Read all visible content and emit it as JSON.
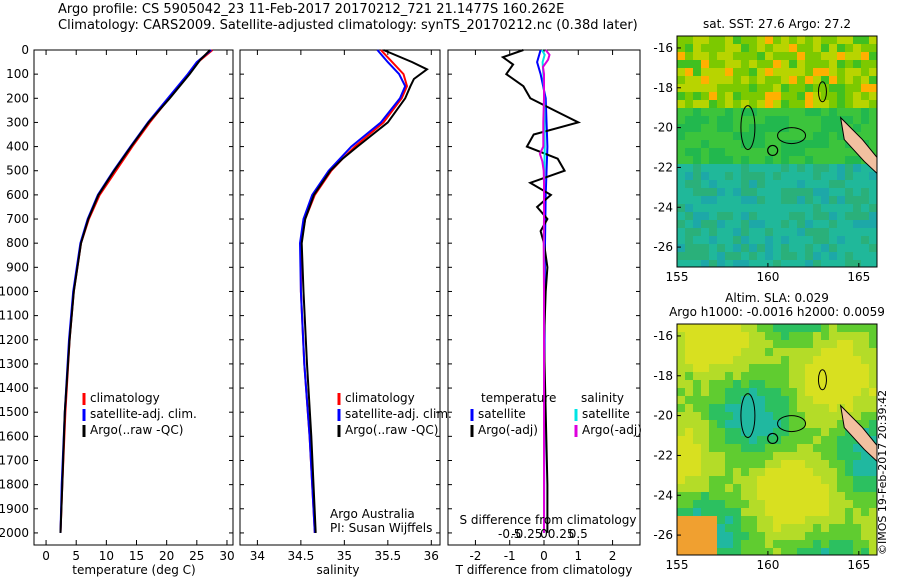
{
  "header": {
    "line1": "Argo profile: CS 5905042_23 11-Feb-2017 20170212_721 21.1477S 160.262E",
    "line2": "Climatology: CARS2009. Satellite-adjusted climatology: synTS_20170212.nc (0.38d later)"
  },
  "side_stamp": "©IMOS 19-Feb-2017 20:39:42",
  "colors": {
    "clim": "#ff0000",
    "sat": "#0000ff",
    "argo": "#000000",
    "sal_sat": "#00e5e5",
    "sal_argo": "#dd00dd"
  },
  "chart_data": [
    {
      "type": "line",
      "name": "temperature-profile",
      "xlabel": "temperature (deg C)",
      "ylabel": "",
      "xlim": [
        -2,
        31
      ],
      "ylim": [
        2050,
        0
      ],
      "xticks": [
        0,
        5,
        10,
        15,
        20,
        25,
        30
      ],
      "yticks": [
        0,
        100,
        200,
        300,
        400,
        500,
        600,
        700,
        800,
        900,
        1000,
        1100,
        1200,
        1300,
        1400,
        1500,
        1600,
        1700,
        1800,
        1900,
        2000
      ],
      "legend": [
        "climatology",
        "satellite-adj. clim.",
        "Argo(..raw -QC)"
      ],
      "series": [
        {
          "name": "climatology",
          "color": "#ff0000",
          "depth": [
            0,
            50,
            100,
            200,
            300,
            400,
            500,
            600,
            700,
            800,
            1000,
            1200,
            1500,
            1800,
            2000
          ],
          "values": [
            27.6,
            25.2,
            23.6,
            20.4,
            17.2,
            14.3,
            11.6,
            8.9,
            7.1,
            5.8,
            4.6,
            3.9,
            3.2,
            2.7,
            2.4
          ]
        },
        {
          "name": "satellite-adj. clim.",
          "color": "#0000ff",
          "depth": [
            0,
            50,
            100,
            200,
            300,
            400,
            500,
            600,
            700,
            800,
            1000,
            1200,
            1500,
            1800,
            2000
          ],
          "values": [
            27.4,
            25.0,
            23.5,
            20.2,
            16.9,
            14.0,
            11.2,
            8.6,
            6.9,
            5.7,
            4.5,
            3.8,
            3.1,
            2.6,
            2.4
          ]
        },
        {
          "name": "Argo(..raw -QC)",
          "color": "#000000",
          "depth": [
            0,
            40,
            100,
            200,
            300,
            400,
            500,
            600,
            700,
            800,
            1000,
            1200,
            1500,
            1800,
            2000
          ],
          "values": [
            27.2,
            25.6,
            23.8,
            20.5,
            17.0,
            14.1,
            11.3,
            8.7,
            7.0,
            5.8,
            4.6,
            3.9,
            3.1,
            2.7,
            2.4
          ]
        }
      ]
    },
    {
      "type": "line",
      "name": "salinity-profile",
      "xlabel": "salinity",
      "ylabel": "",
      "xlim": [
        33.8,
        36.1
      ],
      "ylim": [
        2050,
        0
      ],
      "xticks": [
        34,
        34.5,
        35,
        35.5,
        36
      ],
      "legend": [
        "climatology",
        "satellite-adj. clim.",
        "Argo(..raw -QC)"
      ],
      "annotation": [
        "Argo Australia",
        "PI: Susan Wijffels"
      ],
      "series": [
        {
          "name": "climatology",
          "color": "#ff0000",
          "depth": [
            0,
            50,
            100,
            150,
            200,
            300,
            400,
            450,
            500,
            600,
            700,
            800,
            1000,
            1300,
            1600,
            2000
          ],
          "values": [
            35.42,
            35.55,
            35.68,
            35.72,
            35.66,
            35.45,
            35.12,
            34.98,
            34.85,
            34.66,
            34.55,
            34.5,
            34.5,
            34.54,
            34.6,
            34.66
          ]
        },
        {
          "name": "satellite-adj. clim.",
          "color": "#0000ff",
          "depth": [
            0,
            50,
            100,
            150,
            200,
            300,
            400,
            450,
            500,
            600,
            700,
            800,
            1000,
            1300,
            1600,
            2000
          ],
          "values": [
            35.38,
            35.5,
            35.63,
            35.7,
            35.64,
            35.42,
            35.08,
            34.95,
            34.82,
            34.63,
            34.53,
            34.49,
            34.5,
            34.54,
            34.6,
            34.66
          ]
        },
        {
          "name": "Argo(..raw -QC)",
          "color": "#000000",
          "depth": [
            0,
            50,
            80,
            120,
            150,
            200,
            300,
            400,
            450,
            500,
            600,
            700,
            800,
            1000,
            1300,
            1600,
            2000
          ],
          "values": [
            35.45,
            35.78,
            35.95,
            35.8,
            35.76,
            35.7,
            35.5,
            35.15,
            34.98,
            34.84,
            34.65,
            34.55,
            34.51,
            34.53,
            34.57,
            34.62,
            34.67
          ]
        }
      ]
    },
    {
      "type": "line",
      "name": "difference-profile",
      "xlabel_bottom": "T difference from climatology",
      "xlabel_top": "S difference from climatology",
      "xlim": [
        -2.8,
        2.8
      ],
      "ylim": [
        2050,
        0
      ],
      "xticks": [
        -2,
        -1,
        0,
        1,
        2
      ],
      "s_ticks": [
        "-0.5",
        "-0.25",
        "0",
        "0.25",
        "0.5"
      ],
      "legend_temperature": {
        "title": "temperature",
        "items": [
          "satellite",
          "Argo(-adj)"
        ]
      },
      "legend_salinity": {
        "title": "salinity",
        "items": [
          "satellite",
          "Argo(-adj)"
        ]
      },
      "series": [
        {
          "name": "T satellite",
          "color": "#0000ff",
          "depth": [
            0,
            50,
            100,
            200,
            400,
            600,
            800,
            1000,
            1500,
            2000
          ],
          "values": [
            -0.1,
            -0.2,
            -0.1,
            0.05,
            0.1,
            0.05,
            0.03,
            0.02,
            0.01,
            0.0
          ]
        },
        {
          "name": "T Argo(-adj)",
          "color": "#000000",
          "depth": [
            0,
            30,
            60,
            100,
            150,
            200,
            250,
            300,
            350,
            400,
            450,
            500,
            550,
            600,
            650,
            700,
            750,
            800,
            900,
            1000,
            1200,
            1500,
            1800,
            2000
          ],
          "values": [
            -0.6,
            -1.2,
            -0.9,
            -1.1,
            -0.6,
            -0.4,
            0.3,
            1.0,
            -0.3,
            -0.5,
            0.4,
            0.6,
            -0.4,
            0.2,
            -0.2,
            0.1,
            -0.1,
            0.0,
            0.1,
            0.05,
            0.0,
            0.05,
            0.1,
            0.1
          ]
        },
        {
          "name": "S satellite",
          "color": "#00e5e5",
          "depth": [
            0,
            20,
            50,
            100,
            200,
            400,
            600,
            800,
            1000,
            1500,
            2000
          ],
          "values": [
            -0.06,
            0.02,
            -0.04,
            -0.02,
            0.01,
            0.02,
            0.0,
            0.0,
            0.0,
            0.0,
            0.0
          ]
        },
        {
          "name": "S Argo(-adj)",
          "color": "#dd00dd",
          "depth": [
            0,
            20,
            40,
            70,
            100,
            200,
            300,
            400,
            430,
            460,
            500,
            550,
            600,
            700,
            800,
            1000,
            1500,
            2000
          ],
          "values": [
            0.05,
            0.16,
            0.12,
            -0.03,
            0.0,
            0.0,
            -0.02,
            -0.02,
            -0.12,
            -0.05,
            -0.01,
            0.0,
            0.0,
            0.0,
            -0.01,
            0.0,
            0.0,
            0.0
          ]
        }
      ]
    },
    {
      "type": "heatmap",
      "name": "sst-map",
      "title": "sat. SST: 27.6   Argo: 27.2",
      "xlim": [
        155,
        166
      ],
      "ylim": [
        -27,
        -15.4
      ],
      "xticks": [
        155,
        160,
        165
      ],
      "yticks": [
        -16,
        -18,
        -20,
        -22,
        -24,
        -26
      ],
      "argo_position": [
        160.262,
        -21.1477
      ]
    },
    {
      "type": "heatmap",
      "name": "sla-map",
      "title1": "Altim. SLA: 0.029",
      "title2": "Argo h1000: -0.0016 h2000: 0.0059",
      "xlim": [
        155,
        166
      ],
      "ylim": [
        -27,
        -15.4
      ],
      "xticks": [
        155,
        160,
        165
      ],
      "yticks": [
        -16,
        -18,
        -20,
        -22,
        -24,
        -26
      ],
      "argo_position": [
        160.262,
        -21.1477
      ]
    }
  ]
}
